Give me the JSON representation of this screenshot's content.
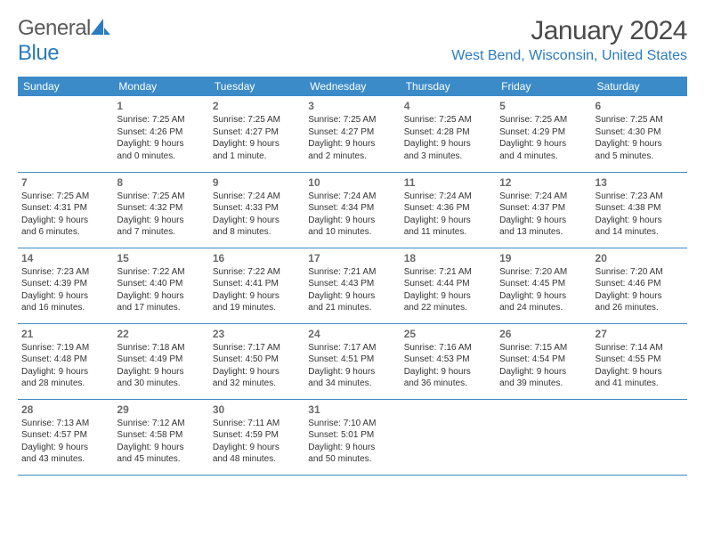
{
  "logo": {
    "text_general": "General",
    "text_blue": "Blue",
    "icon_color": "#2b7bbf"
  },
  "title": "January 2024",
  "location": "West Bend, Wisconsin, United States",
  "header_bg": "#3b8bc9",
  "header_fg": "#ffffff",
  "border_color": "#3b8bc9",
  "text_color": "#333333",
  "daynum_color": "#6a6a6a",
  "day_headers": [
    "Sunday",
    "Monday",
    "Tuesday",
    "Wednesday",
    "Thursday",
    "Friday",
    "Saturday"
  ],
  "weeks": [
    [
      {
        "day": "",
        "sunrise": "",
        "sunset": "",
        "daylight1": "",
        "daylight2": ""
      },
      {
        "day": "1",
        "sunrise": "Sunrise: 7:25 AM",
        "sunset": "Sunset: 4:26 PM",
        "daylight1": "Daylight: 9 hours",
        "daylight2": "and 0 minutes."
      },
      {
        "day": "2",
        "sunrise": "Sunrise: 7:25 AM",
        "sunset": "Sunset: 4:27 PM",
        "daylight1": "Daylight: 9 hours",
        "daylight2": "and 1 minute."
      },
      {
        "day": "3",
        "sunrise": "Sunrise: 7:25 AM",
        "sunset": "Sunset: 4:27 PM",
        "daylight1": "Daylight: 9 hours",
        "daylight2": "and 2 minutes."
      },
      {
        "day": "4",
        "sunrise": "Sunrise: 7:25 AM",
        "sunset": "Sunset: 4:28 PM",
        "daylight1": "Daylight: 9 hours",
        "daylight2": "and 3 minutes."
      },
      {
        "day": "5",
        "sunrise": "Sunrise: 7:25 AM",
        "sunset": "Sunset: 4:29 PM",
        "daylight1": "Daylight: 9 hours",
        "daylight2": "and 4 minutes."
      },
      {
        "day": "6",
        "sunrise": "Sunrise: 7:25 AM",
        "sunset": "Sunset: 4:30 PM",
        "daylight1": "Daylight: 9 hours",
        "daylight2": "and 5 minutes."
      }
    ],
    [
      {
        "day": "7",
        "sunrise": "Sunrise: 7:25 AM",
        "sunset": "Sunset: 4:31 PM",
        "daylight1": "Daylight: 9 hours",
        "daylight2": "and 6 minutes."
      },
      {
        "day": "8",
        "sunrise": "Sunrise: 7:25 AM",
        "sunset": "Sunset: 4:32 PM",
        "daylight1": "Daylight: 9 hours",
        "daylight2": "and 7 minutes."
      },
      {
        "day": "9",
        "sunrise": "Sunrise: 7:24 AM",
        "sunset": "Sunset: 4:33 PM",
        "daylight1": "Daylight: 9 hours",
        "daylight2": "and 8 minutes."
      },
      {
        "day": "10",
        "sunrise": "Sunrise: 7:24 AM",
        "sunset": "Sunset: 4:34 PM",
        "daylight1": "Daylight: 9 hours",
        "daylight2": "and 10 minutes."
      },
      {
        "day": "11",
        "sunrise": "Sunrise: 7:24 AM",
        "sunset": "Sunset: 4:36 PM",
        "daylight1": "Daylight: 9 hours",
        "daylight2": "and 11 minutes."
      },
      {
        "day": "12",
        "sunrise": "Sunrise: 7:24 AM",
        "sunset": "Sunset: 4:37 PM",
        "daylight1": "Daylight: 9 hours",
        "daylight2": "and 13 minutes."
      },
      {
        "day": "13",
        "sunrise": "Sunrise: 7:23 AM",
        "sunset": "Sunset: 4:38 PM",
        "daylight1": "Daylight: 9 hours",
        "daylight2": "and 14 minutes."
      }
    ],
    [
      {
        "day": "14",
        "sunrise": "Sunrise: 7:23 AM",
        "sunset": "Sunset: 4:39 PM",
        "daylight1": "Daylight: 9 hours",
        "daylight2": "and 16 minutes."
      },
      {
        "day": "15",
        "sunrise": "Sunrise: 7:22 AM",
        "sunset": "Sunset: 4:40 PM",
        "daylight1": "Daylight: 9 hours",
        "daylight2": "and 17 minutes."
      },
      {
        "day": "16",
        "sunrise": "Sunrise: 7:22 AM",
        "sunset": "Sunset: 4:41 PM",
        "daylight1": "Daylight: 9 hours",
        "daylight2": "and 19 minutes."
      },
      {
        "day": "17",
        "sunrise": "Sunrise: 7:21 AM",
        "sunset": "Sunset: 4:43 PM",
        "daylight1": "Daylight: 9 hours",
        "daylight2": "and 21 minutes."
      },
      {
        "day": "18",
        "sunrise": "Sunrise: 7:21 AM",
        "sunset": "Sunset: 4:44 PM",
        "daylight1": "Daylight: 9 hours",
        "daylight2": "and 22 minutes."
      },
      {
        "day": "19",
        "sunrise": "Sunrise: 7:20 AM",
        "sunset": "Sunset: 4:45 PM",
        "daylight1": "Daylight: 9 hours",
        "daylight2": "and 24 minutes."
      },
      {
        "day": "20",
        "sunrise": "Sunrise: 7:20 AM",
        "sunset": "Sunset: 4:46 PM",
        "daylight1": "Daylight: 9 hours",
        "daylight2": "and 26 minutes."
      }
    ],
    [
      {
        "day": "21",
        "sunrise": "Sunrise: 7:19 AM",
        "sunset": "Sunset: 4:48 PM",
        "daylight1": "Daylight: 9 hours",
        "daylight2": "and 28 minutes."
      },
      {
        "day": "22",
        "sunrise": "Sunrise: 7:18 AM",
        "sunset": "Sunset: 4:49 PM",
        "daylight1": "Daylight: 9 hours",
        "daylight2": "and 30 minutes."
      },
      {
        "day": "23",
        "sunrise": "Sunrise: 7:17 AM",
        "sunset": "Sunset: 4:50 PM",
        "daylight1": "Daylight: 9 hours",
        "daylight2": "and 32 minutes."
      },
      {
        "day": "24",
        "sunrise": "Sunrise: 7:17 AM",
        "sunset": "Sunset: 4:51 PM",
        "daylight1": "Daylight: 9 hours",
        "daylight2": "and 34 minutes."
      },
      {
        "day": "25",
        "sunrise": "Sunrise: 7:16 AM",
        "sunset": "Sunset: 4:53 PM",
        "daylight1": "Daylight: 9 hours",
        "daylight2": "and 36 minutes."
      },
      {
        "day": "26",
        "sunrise": "Sunrise: 7:15 AM",
        "sunset": "Sunset: 4:54 PM",
        "daylight1": "Daylight: 9 hours",
        "daylight2": "and 39 minutes."
      },
      {
        "day": "27",
        "sunrise": "Sunrise: 7:14 AM",
        "sunset": "Sunset: 4:55 PM",
        "daylight1": "Daylight: 9 hours",
        "daylight2": "and 41 minutes."
      }
    ],
    [
      {
        "day": "28",
        "sunrise": "Sunrise: 7:13 AM",
        "sunset": "Sunset: 4:57 PM",
        "daylight1": "Daylight: 9 hours",
        "daylight2": "and 43 minutes."
      },
      {
        "day": "29",
        "sunrise": "Sunrise: 7:12 AM",
        "sunset": "Sunset: 4:58 PM",
        "daylight1": "Daylight: 9 hours",
        "daylight2": "and 45 minutes."
      },
      {
        "day": "30",
        "sunrise": "Sunrise: 7:11 AM",
        "sunset": "Sunset: 4:59 PM",
        "daylight1": "Daylight: 9 hours",
        "daylight2": "and 48 minutes."
      },
      {
        "day": "31",
        "sunrise": "Sunrise: 7:10 AM",
        "sunset": "Sunset: 5:01 PM",
        "daylight1": "Daylight: 9 hours",
        "daylight2": "and 50 minutes."
      },
      {
        "day": "",
        "sunrise": "",
        "sunset": "",
        "daylight1": "",
        "daylight2": ""
      },
      {
        "day": "",
        "sunrise": "",
        "sunset": "",
        "daylight1": "",
        "daylight2": ""
      },
      {
        "day": "",
        "sunrise": "",
        "sunset": "",
        "daylight1": "",
        "daylight2": ""
      }
    ]
  ]
}
